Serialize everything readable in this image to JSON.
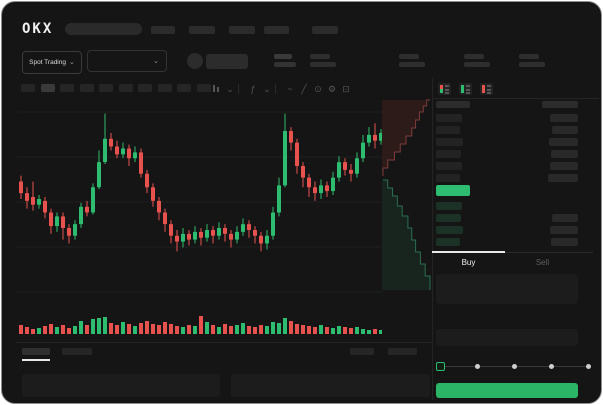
{
  "colors": {
    "green": "#2EBD70",
    "red": "#E8524E",
    "buy_button": "#2BB566",
    "bid_row_tint": "#1C3226",
    "ask_bar": "#232323",
    "amount_bar": "#292929",
    "skeleton": "#2B2B2B",
    "window_bg": "#151515",
    "grid": "#1E1E1E",
    "depth_ask_fill": "rgba(190,62,60,0.14)",
    "depth_ask_line": "#7E3C3C",
    "depth_bid_fill": "rgba(35,150,95,0.13)",
    "depth_bid_line": "#2C6E52"
  },
  "topbar": {
    "logo": "OKX",
    "search": {
      "value": "",
      "placeholder": ""
    },
    "nav_item_count": 5
  },
  "market_bar": {
    "market_selector_label": "Spot Trading",
    "chevron_glyph": "⌄",
    "ticker_group_count": 4
  },
  "chart_toolbar": {
    "interval_count": 10,
    "active_interval_index": 1,
    "icons": [
      {
        "name": "chart-type-icon",
        "type": "candle",
        "glyph": ""
      },
      {
        "name": "chart-type-chevron-icon",
        "type": "glyph",
        "glyph": "⌄"
      },
      {
        "name": "toolbar-divider",
        "type": "divider",
        "glyph": ""
      },
      {
        "name": "indicators-icon",
        "type": "glyph",
        "glyph": "ƒ"
      },
      {
        "name": "indicators-chevron-icon",
        "type": "glyph",
        "glyph": "⌄"
      },
      {
        "name": "toolbar-divider",
        "type": "divider",
        "glyph": ""
      },
      {
        "name": "line-tool-icon",
        "type": "glyph",
        "glyph": "~"
      },
      {
        "name": "draw-tool-icon",
        "type": "glyph",
        "glyph": "╱"
      },
      {
        "name": "screenshot-icon",
        "type": "glyph",
        "glyph": "⊙"
      },
      {
        "name": "settings-icon",
        "type": "glyph",
        "glyph": "⚙"
      },
      {
        "name": "fullscreen-icon",
        "type": "glyph",
        "glyph": "⊡"
      }
    ]
  },
  "chart_data": {
    "type": "candlestick",
    "title": "",
    "xlabel": "",
    "ylabel": "",
    "price_scale": [
      0,
      100
    ],
    "candles_ochl": [
      [
        58,
        52,
        61,
        49
      ],
      [
        52,
        48,
        55,
        44
      ],
      [
        50,
        46,
        58,
        43
      ],
      [
        46,
        49,
        51,
        44
      ],
      [
        48,
        42,
        50,
        39
      ],
      [
        42,
        35,
        44,
        31
      ],
      [
        35,
        40,
        42,
        32
      ],
      [
        40,
        34,
        42,
        28
      ],
      [
        34,
        30,
        36,
        26
      ],
      [
        30,
        36,
        38,
        28
      ],
      [
        36,
        45,
        47,
        34
      ],
      [
        45,
        42,
        48,
        40
      ],
      [
        42,
        55,
        57,
        41
      ],
      [
        55,
        68,
        74,
        54
      ],
      [
        68,
        80,
        93,
        67
      ],
      [
        80,
        76,
        83,
        74
      ],
      [
        76,
        72,
        79,
        70
      ],
      [
        72,
        75,
        78,
        70
      ],
      [
        75,
        70,
        77,
        66
      ],
      [
        70,
        73,
        76,
        68
      ],
      [
        73,
        62,
        75,
        60
      ],
      [
        62,
        55,
        64,
        52
      ],
      [
        55,
        48,
        57,
        45
      ],
      [
        48,
        42,
        50,
        38
      ],
      [
        42,
        36,
        44,
        32
      ],
      [
        36,
        30,
        38,
        26
      ],
      [
        30,
        27,
        33,
        22
      ],
      [
        27,
        31,
        34,
        24
      ],
      [
        31,
        28,
        33,
        25
      ],
      [
        28,
        32,
        35,
        26
      ],
      [
        32,
        29,
        34,
        25
      ],
      [
        29,
        33,
        36,
        27
      ],
      [
        33,
        30,
        35,
        26
      ],
      [
        30,
        34,
        37,
        28
      ],
      [
        34,
        31,
        36,
        27
      ],
      [
        31,
        28,
        33,
        24
      ],
      [
        28,
        32,
        35,
        26
      ],
      [
        32,
        36,
        39,
        30
      ],
      [
        36,
        33,
        38,
        29
      ],
      [
        33,
        30,
        35,
        26
      ],
      [
        30,
        26,
        32,
        22
      ],
      [
        26,
        30,
        33,
        23
      ],
      [
        30,
        42,
        45,
        28
      ],
      [
        42,
        56,
        60,
        40
      ],
      [
        56,
        84,
        93,
        55
      ],
      [
        84,
        78,
        86,
        74
      ],
      [
        78,
        66,
        80,
        62
      ],
      [
        66,
        60,
        68,
        55
      ],
      [
        60,
        55,
        62,
        50
      ],
      [
        55,
        52,
        58,
        48
      ],
      [
        52,
        56,
        59,
        49
      ],
      [
        56,
        53,
        58,
        50
      ],
      [
        53,
        60,
        63,
        51
      ],
      [
        60,
        68,
        71,
        58
      ],
      [
        68,
        64,
        70,
        61
      ],
      [
        64,
        62,
        67,
        58
      ],
      [
        62,
        70,
        73,
        60
      ],
      [
        70,
        78,
        82,
        68
      ],
      [
        78,
        82,
        86,
        76
      ],
      [
        82,
        79,
        88,
        75
      ],
      [
        79,
        83,
        85,
        77
      ]
    ],
    "volumes": [
      9,
      7,
      5,
      6,
      8,
      10,
      7,
      9,
      6,
      8,
      13,
      9,
      15,
      16,
      17,
      11,
      9,
      12,
      10,
      8,
      11,
      13,
      10,
      9,
      12,
      10,
      8,
      7,
      9,
      8,
      18,
      12,
      9,
      7,
      10,
      8,
      9,
      11,
      8,
      7,
      9,
      8,
      12,
      11,
      16,
      13,
      10,
      9,
      8,
      7,
      9,
      7,
      6,
      8,
      7,
      6,
      7,
      5,
      4,
      5,
      4
    ],
    "depth": {
      "asks": [
        [
          98,
          1.0
        ],
        [
          104,
          0.93
        ],
        [
          110,
          0.86
        ],
        [
          118,
          0.78
        ],
        [
          126,
          0.7
        ],
        [
          134,
          0.62
        ],
        [
          142,
          0.5
        ],
        [
          150,
          0.38
        ],
        [
          158,
          0.26
        ],
        [
          166,
          0.12
        ],
        [
          174,
          0.02
        ]
      ],
      "bids": [
        [
          178,
          0.02
        ],
        [
          186,
          0.12
        ],
        [
          194,
          0.22
        ],
        [
          204,
          0.32
        ],
        [
          214,
          0.42
        ],
        [
          226,
          0.54
        ],
        [
          238,
          0.62
        ],
        [
          250,
          0.7
        ],
        [
          262,
          0.8
        ],
        [
          274,
          0.9
        ],
        [
          288,
          1.0
        ]
      ]
    },
    "grid": true,
    "legend": false
  },
  "orderbook": {
    "view_toggles": [
      {
        "name": "orderbook-view-both-icon",
        "colors": [
          "#E8524E",
          "#2EBD70"
        ]
      },
      {
        "name": "orderbook-view-bids-icon",
        "colors": [
          "#2EBD70",
          "#2EBD70"
        ]
      },
      {
        "name": "orderbook-view-asks-icon",
        "colors": [
          "#E8524E",
          "#E8524E"
        ]
      }
    ],
    "ask_rows": [
      [
        26,
        28
      ],
      [
        24,
        26
      ],
      [
        27,
        29
      ],
      [
        25,
        27
      ],
      [
        26,
        28
      ],
      [
        24,
        30
      ]
    ],
    "bid_rows": [
      [
        26,
        0
      ],
      [
        25,
        26
      ],
      [
        27,
        28
      ],
      [
        24,
        27
      ]
    ],
    "last_price_highlight": true
  },
  "trade_panel": {
    "tabs": {
      "buy": "Buy",
      "sell": "Sell",
      "active": "Buy"
    },
    "field_count": 2,
    "slider_stops": [
      0,
      25,
      50,
      75,
      100
    ],
    "slider_value": 0,
    "buy_button_label": ""
  },
  "bottom_bar": {
    "left_tab_count": 2,
    "right_tab_count": 2,
    "active_tab_index": 0,
    "drawer_count": 2
  }
}
